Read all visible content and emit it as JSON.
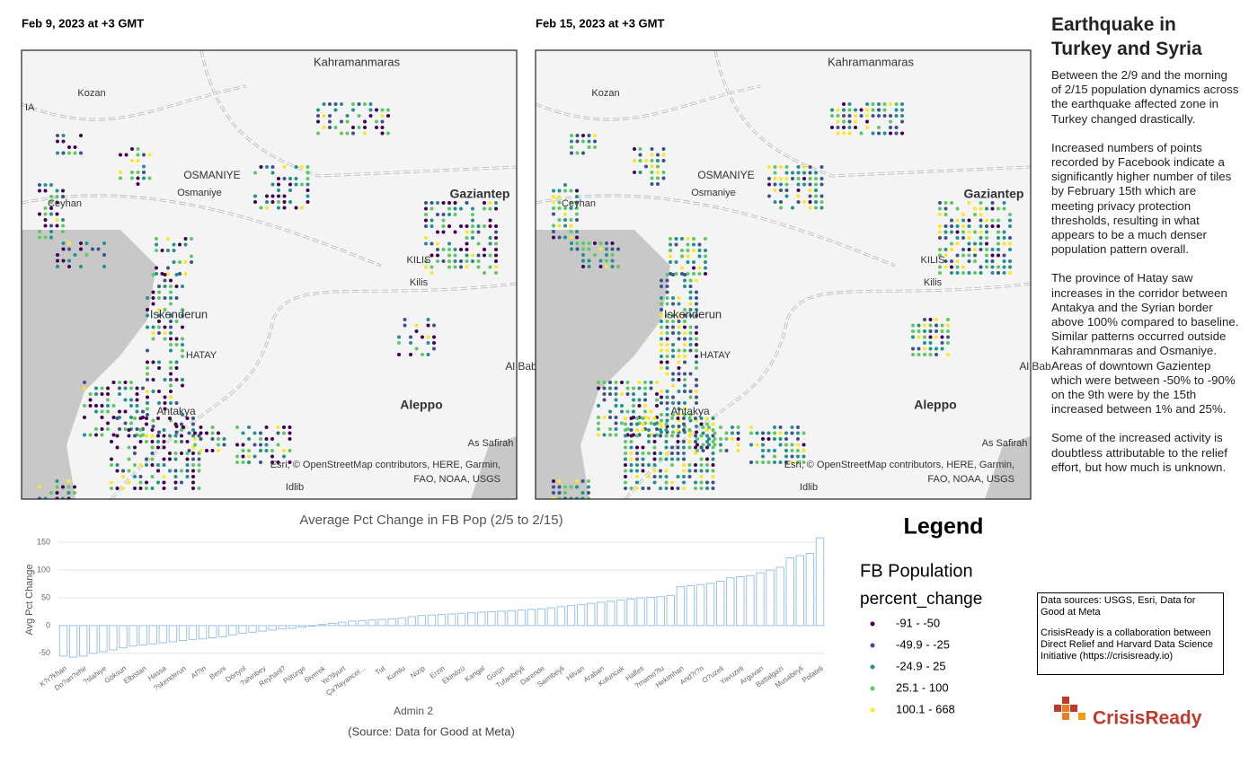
{
  "maps": [
    {
      "caption": "Feb 9, 2023 at +3 GMT",
      "places": [
        "Kozan",
        "IA",
        "Kahramanmaras",
        "OSMANIYE",
        "Osmaniye",
        "Ceyhan",
        "Gaziantep",
        "KILIS",
        "Kilis",
        "Iskenderun",
        "HATAY",
        "Antakya",
        "Al Bab",
        "Aleppo",
        "As Safirah",
        "Idlib"
      ],
      "attribution": [
        "Esri, © OpenStreetMap contributors, HERE, Garmin,",
        "FAO, NOAA, USGS"
      ]
    },
    {
      "caption": "Feb 15, 2023 at +3 GMT",
      "places": [
        "Kozan",
        "Kahramanmaras",
        "OSMANIYE",
        "Osmaniye",
        "Ceyhan",
        "Gaziantep",
        "KILIS",
        "Kilis",
        "Iskenderun",
        "HATAY",
        "Antakya",
        "Al Bab",
        "Aleppo",
        "As Safirah",
        "Idlib"
      ],
      "attribution": [
        "Esri, © OpenStreetMap contributors, HERE, Garmin,",
        "FAO, NOAA, USGS"
      ]
    }
  ],
  "panel": {
    "title": "Earthquake in Turkey and Syria",
    "paragraphs": [
      "Between the 2/9 and the morning of 2/15 population dynamics across the earthquake affected zone in Turkey changed drastically.",
      "Increased numbers of points recorded by Facebook indicate a significantly higher number of tiles by February 15th which are meeting privacy protection thresholds, resulting in what appears to be a much denser population pattern overall.",
      "The province of Hatay saw increases in the corridor between Antakya and the Syrian border above 100% compared to baseline. Similar patterns occurred outside Kahramnmaras and Osmaniye. Areas of downtown Gazientep which were between -50% to -90% on the 9th were by the 15th increased between 1% and 25%.",
      "Some of the increased activity is doubtless attributable to the relief effort, but how much is unknown."
    ]
  },
  "sources": [
    "Data sources: USGS, Esri, Data for Good at Meta",
    "CrisisReady is a collaboration between Direct Relief and Harvard Data Science Initiative (https://crisisready.io)"
  ],
  "logo": {
    "text": "CrisisReady"
  },
  "legend": {
    "title": "Legend",
    "layer": "FB Population",
    "field": "percent_change",
    "items": [
      {
        "label": "-91 - -50",
        "color": "#440154"
      },
      {
        "label": "-49.9 - -25",
        "color": "#3b528b"
      },
      {
        "label": "-24.9 - 25",
        "color": "#21918c"
      },
      {
        "label": "25.1 - 100",
        "color": "#5ec962"
      },
      {
        "label": "100.1 - 668",
        "color": "#fde725"
      }
    ]
  },
  "chart_data": {
    "type": "bar",
    "title": "Average Pct Change in FB Pop (2/5 to 2/15)",
    "x_label": "Admin 2",
    "y_label": "Avg Pct Change",
    "caption": "(Source: Data for Good at Meta)",
    "categories": [
      "K?r?khan",
      null,
      "Do?an?ehir",
      null,
      "?slahiye",
      null,
      "Göksun",
      null,
      "Elbistan",
      null,
      "Hassa",
      null,
      "?skenderun",
      null,
      "Af?in",
      null,
      "Besni",
      null,
      "Dörtyol",
      null,
      "?ahinbey",
      null,
      "Reyhanl?",
      null,
      "Pötürge",
      null,
      "Siverek",
      null,
      "Ye?ilyurt",
      null,
      "Ça?layancer...",
      null,
      "Tut",
      null,
      "Kumlu",
      null,
      "Nizip",
      null,
      "Erzin",
      null,
      "Ekinözü",
      null,
      "Kangal",
      null,
      "Gürün",
      null,
      "Tufanbeyli",
      null,
      "Darende",
      null,
      "Saimbeyli",
      null,
      "Hilvan",
      null,
      "Araban",
      null,
      "Kuluncak",
      null,
      "Halfeti",
      null,
      "?mamo?lu",
      null,
      "Hekimhan",
      null,
      "And?r?n",
      null,
      "O?uzeli",
      null,
      "Yavuzeli",
      null,
      "Arguvan",
      null,
      "Battalgazi",
      null,
      "Musabeyli",
      null,
      "Polateli"
    ],
    "values": [
      -55,
      -57,
      -55,
      -50,
      -47,
      -44,
      -40,
      -37,
      -35,
      -33,
      -31,
      -29,
      -27,
      -25,
      -24,
      -22,
      -20,
      -17,
      -14,
      -12,
      -10,
      -8,
      -6,
      -5,
      -3,
      -1,
      2,
      4,
      6,
      8,
      9,
      10,
      11,
      12,
      14,
      16,
      18,
      19,
      20,
      21,
      22,
      23,
      24,
      25,
      26,
      27,
      28,
      29,
      30,
      32,
      34,
      36,
      38,
      40,
      42,
      44,
      46,
      48,
      50,
      51,
      52,
      54,
      70,
      72,
      74,
      76,
      80,
      86,
      88,
      90,
      95,
      100,
      105,
      122,
      126,
      130,
      158
    ],
    "color": "#9cc3e6",
    "ylim": [
      -60,
      160
    ],
    "yticks": [
      -50,
      0,
      50,
      100,
      150
    ],
    "grid": true
  }
}
